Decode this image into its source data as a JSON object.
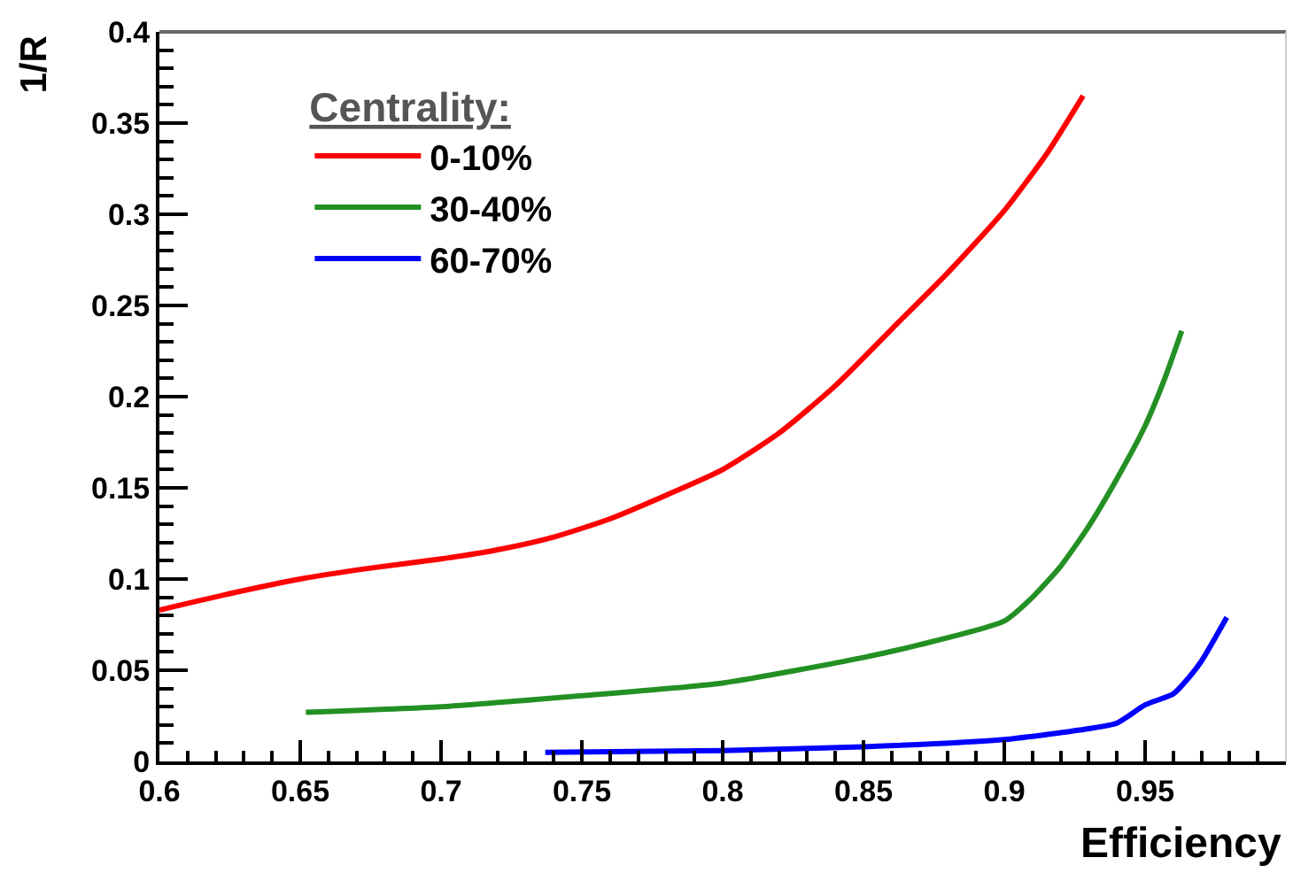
{
  "chart_data": {
    "type": "line",
    "xlabel": "Efficiency",
    "ylabel": "1/R",
    "legend_title": "Centrality:",
    "legend": "top left",
    "grid": false,
    "marker": "none",
    "line_style": "solid",
    "xlim": [
      0.6,
      1.0
    ],
    "xticks": [
      0.6,
      0.65,
      0.7,
      0.75,
      0.8,
      0.85,
      0.9,
      0.95
    ],
    "ylim": [
      0,
      0.4
    ],
    "yticks": [
      0,
      0.05,
      0.1,
      0.15,
      0.2,
      0.25,
      0.3,
      0.35,
      0.4
    ],
    "series": [
      {
        "name": "0-10%",
        "color": "#ff0000",
        "x": [
          0.6,
          0.625,
          0.65,
          0.675,
          0.7,
          0.72,
          0.74,
          0.76,
          0.78,
          0.8,
          0.82,
          0.84,
          0.86,
          0.88,
          0.9,
          0.915,
          0.928
        ],
        "values": [
          0.083,
          0.092,
          0.1,
          0.106,
          0.111,
          0.116,
          0.123,
          0.133,
          0.146,
          0.16,
          0.18,
          0.206,
          0.237,
          0.268,
          0.302,
          0.333,
          0.365
        ]
      },
      {
        "name": "30-40%",
        "color": "#239023",
        "x": [
          0.652,
          0.7,
          0.75,
          0.8,
          0.85,
          0.87,
          0.9,
          0.91,
          0.92,
          0.93,
          0.94,
          0.95,
          0.957,
          0.963
        ],
        "values": [
          0.027,
          0.03,
          0.036,
          0.043,
          0.057,
          0.064,
          0.077,
          0.09,
          0.107,
          0.129,
          0.155,
          0.184,
          0.21,
          0.236
        ]
      },
      {
        "name": "60-70%",
        "color": "#0000ff",
        "x": [
          0.737,
          0.8,
          0.85,
          0.9,
          0.93,
          0.94,
          0.95,
          0.96,
          0.965,
          0.97,
          0.979
        ],
        "values": [
          0.005,
          0.006,
          0.008,
          0.012,
          0.018,
          0.021,
          0.031,
          0.037,
          0.045,
          0.055,
          0.079
        ]
      }
    ]
  }
}
